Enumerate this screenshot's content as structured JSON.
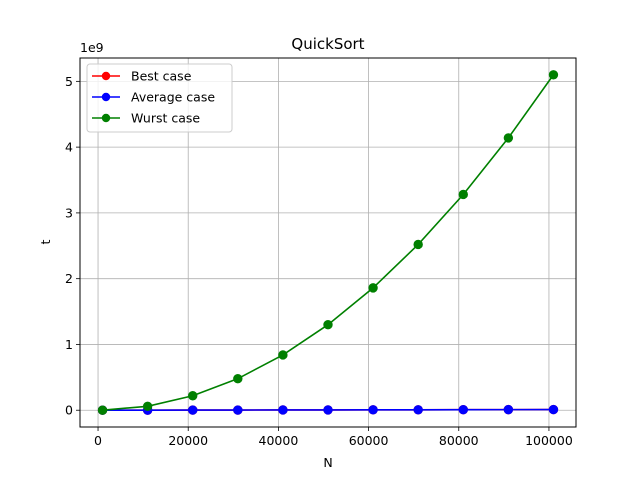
{
  "chart_data": {
    "type": "line",
    "title": "QuickSort",
    "xlabel": "N",
    "ylabel": "t",
    "y_offset_text": "1e9",
    "x": [
      1000,
      11000,
      21000,
      31000,
      41000,
      51000,
      61000,
      71000,
      81000,
      91000,
      101000
    ],
    "xlim": [
      -4000,
      106000
    ],
    "ylim": [
      -0.255,
      5.355
    ],
    "x_ticks": [
      0,
      20000,
      40000,
      60000,
      80000,
      100000
    ],
    "x_tick_labels": [
      "0",
      "20000",
      "40000",
      "60000",
      "80000",
      "100000"
    ],
    "y_ticks": [
      0,
      1,
      2,
      3,
      4,
      5
    ],
    "y_tick_labels": [
      "0",
      "1",
      "2",
      "3",
      "4",
      "5"
    ],
    "grid": true,
    "legend_position": "upper-left",
    "series": [
      {
        "name": "Best case",
        "color": "#ff0000",
        "values": [
          0.0001,
          0.001,
          0.002,
          0.003,
          0.004,
          0.005,
          0.006,
          0.007,
          0.008,
          0.009,
          0.01
        ]
      },
      {
        "name": "Average case",
        "color": "#0000ff",
        "values": [
          0.0001,
          0.001,
          0.002,
          0.003,
          0.004,
          0.005,
          0.006,
          0.007,
          0.008,
          0.009,
          0.01
        ]
      },
      {
        "name": "Wurst case",
        "color": "#008000",
        "values": [
          0.0005,
          0.06,
          0.22,
          0.48,
          0.84,
          1.3,
          1.86,
          2.52,
          3.28,
          4.14,
          5.1
        ]
      }
    ]
  }
}
